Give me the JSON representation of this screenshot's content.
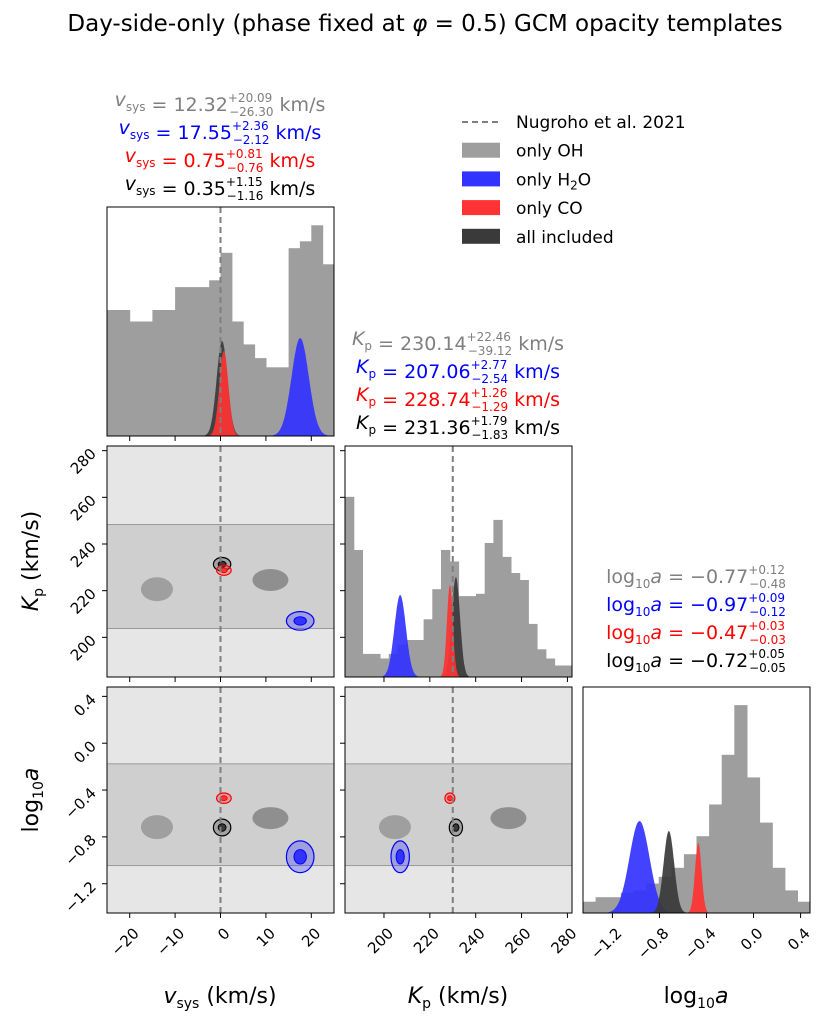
{
  "chart_data": {
    "type": "corner",
    "title": "Day-side-only (phase fixed at φ = 0.5) GCM opacity templates",
    "reference_line": {
      "label": "Nugroho et al. 2021",
      "vsys": 0.0,
      "Kp": 230.0
    },
    "legend": [
      {
        "label": "Nugroho et al. 2021",
        "kind": "dashed-line",
        "color": "#7f7f7f"
      },
      {
        "label": "only OH",
        "kind": "patch",
        "color": "#9e9e9e"
      },
      {
        "label": "only H2O",
        "kind": "patch",
        "color": "#3333ff"
      },
      {
        "label": "only CO",
        "kind": "patch",
        "color": "#ff3333"
      },
      {
        "label": "all included",
        "kind": "patch",
        "color": "#3a3a3a"
      }
    ],
    "axes": {
      "vsys": {
        "label": "v_sys (km/s)",
        "range": [
          -25,
          25
        ],
        "ticks": [
          -20,
          -10,
          0,
          10,
          20
        ]
      },
      "Kp": {
        "label": "K_p (km/s)",
        "range": [
          183,
          282
        ],
        "ticks": [
          200,
          220,
          240,
          260,
          280
        ]
      },
      "loga": {
        "label": "log10 a",
        "range": [
          -1.45,
          0.48
        ],
        "ticks": [
          -1.2,
          -0.8,
          -0.4,
          0.0,
          0.4
        ]
      }
    },
    "series": [
      {
        "name": "only OH",
        "color": "#7f7f7f",
        "fill": "#9e9e9e",
        "vsys": {
          "median": "12.32",
          "plus": "20.09",
          "minus": "26.30"
        },
        "Kp": {
          "median": "230.14",
          "plus": "22.46",
          "minus": "39.12"
        },
        "loga": {
          "median": "−0.77",
          "plus": "0.12",
          "minus": "0.48"
        },
        "hist_vsys": [
          0.55,
          0.55,
          0.5,
          0.5,
          0.55,
          0.55,
          0.65,
          0.65,
          0.65,
          0.68,
          0.8,
          0.5,
          0.4,
          0.34,
          0.3,
          0.3,
          0.82,
          0.85,
          0.92,
          0.75
        ],
        "hist_Kp": [
          0.78,
          0.55,
          0.1,
          0.1,
          0.08,
          0.1,
          0.14,
          0.16,
          0.16,
          0.25,
          0.38,
          0.55,
          0.5,
          0.35,
          0.35,
          0.36,
          0.58,
          0.68,
          0.52,
          0.45,
          0.42,
          0.23,
          0.12,
          0.08,
          0.05,
          0.05
        ],
        "hist_loga": [
          0.05,
          0.07,
          0.07,
          0.09,
          0.1,
          0.13,
          0.16,
          0.2,
          0.26,
          0.34,
          0.48,
          0.7,
          0.92,
          0.6,
          0.4,
          0.2,
          0.1,
          0.05
        ]
      },
      {
        "name": "only H2O",
        "color": "#0000ff",
        "fill": "#3333ff",
        "vsys": {
          "median": "17.55",
          "plus": "2.36",
          "minus": "2.12"
        },
        "Kp": {
          "median": "207.06",
          "plus": "2.77",
          "minus": "2.54"
        },
        "loga": {
          "median": "−0.97",
          "plus": "0.09",
          "minus": "0.12"
        }
      },
      {
        "name": "only CO",
        "color": "#ff0000",
        "fill": "#ff3333",
        "vsys": {
          "median": "0.75",
          "plus": "0.81",
          "minus": "0.76"
        },
        "Kp": {
          "median": "228.74",
          "plus": "1.26",
          "minus": "1.29"
        },
        "loga": {
          "median": "−0.47",
          "plus": "0.03",
          "minus": "0.03"
        }
      },
      {
        "name": "all included",
        "color": "#000000",
        "fill": "#3a3a3a",
        "vsys": {
          "median": "0.35",
          "plus": "1.15",
          "minus": "1.16"
        },
        "Kp": {
          "median": "231.36",
          "plus": "1.79",
          "minus": "1.83"
        },
        "loga": {
          "median": "−0.72",
          "plus": "0.05",
          "minus": "0.05"
        }
      }
    ],
    "peak_widths": {
      "vsys": {
        "only H2O": 1.9,
        "only CO": 1.0,
        "all included": 1.2
      },
      "Kp": {
        "only H2O": 2.5,
        "only CO": 1.3,
        "all included": 1.8
      },
      "loga": {
        "only H2O": 0.085,
        "only CO": 0.028,
        "all included": 0.045
      }
    }
  }
}
